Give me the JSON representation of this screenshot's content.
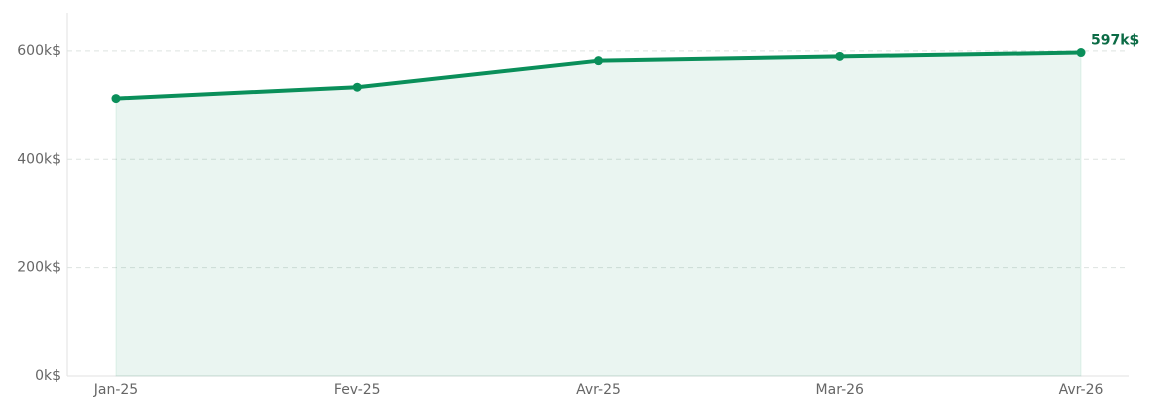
{
  "chart_data": {
    "type": "line",
    "categories": [
      "Jan-25",
      "Fev-25",
      "Avr-25",
      "Mar-26",
      "Avr-26"
    ],
    "series": [
      {
        "color": "#0a8f5a",
        "values": [
          512,
          533,
          582,
          590,
          597
        ],
        "value_labels": [
          null,
          null,
          null,
          null,
          "597k$"
        ]
      }
    ],
    "ylim": [
      0,
      670
    ],
    "yticks": [
      {
        "value": 0,
        "label": "0k$"
      },
      {
        "value": 200,
        "label": "200k$"
      },
      {
        "value": 400,
        "label": "400k$"
      },
      {
        "value": 600,
        "label": "600k$"
      }
    ],
    "grid": true
  }
}
